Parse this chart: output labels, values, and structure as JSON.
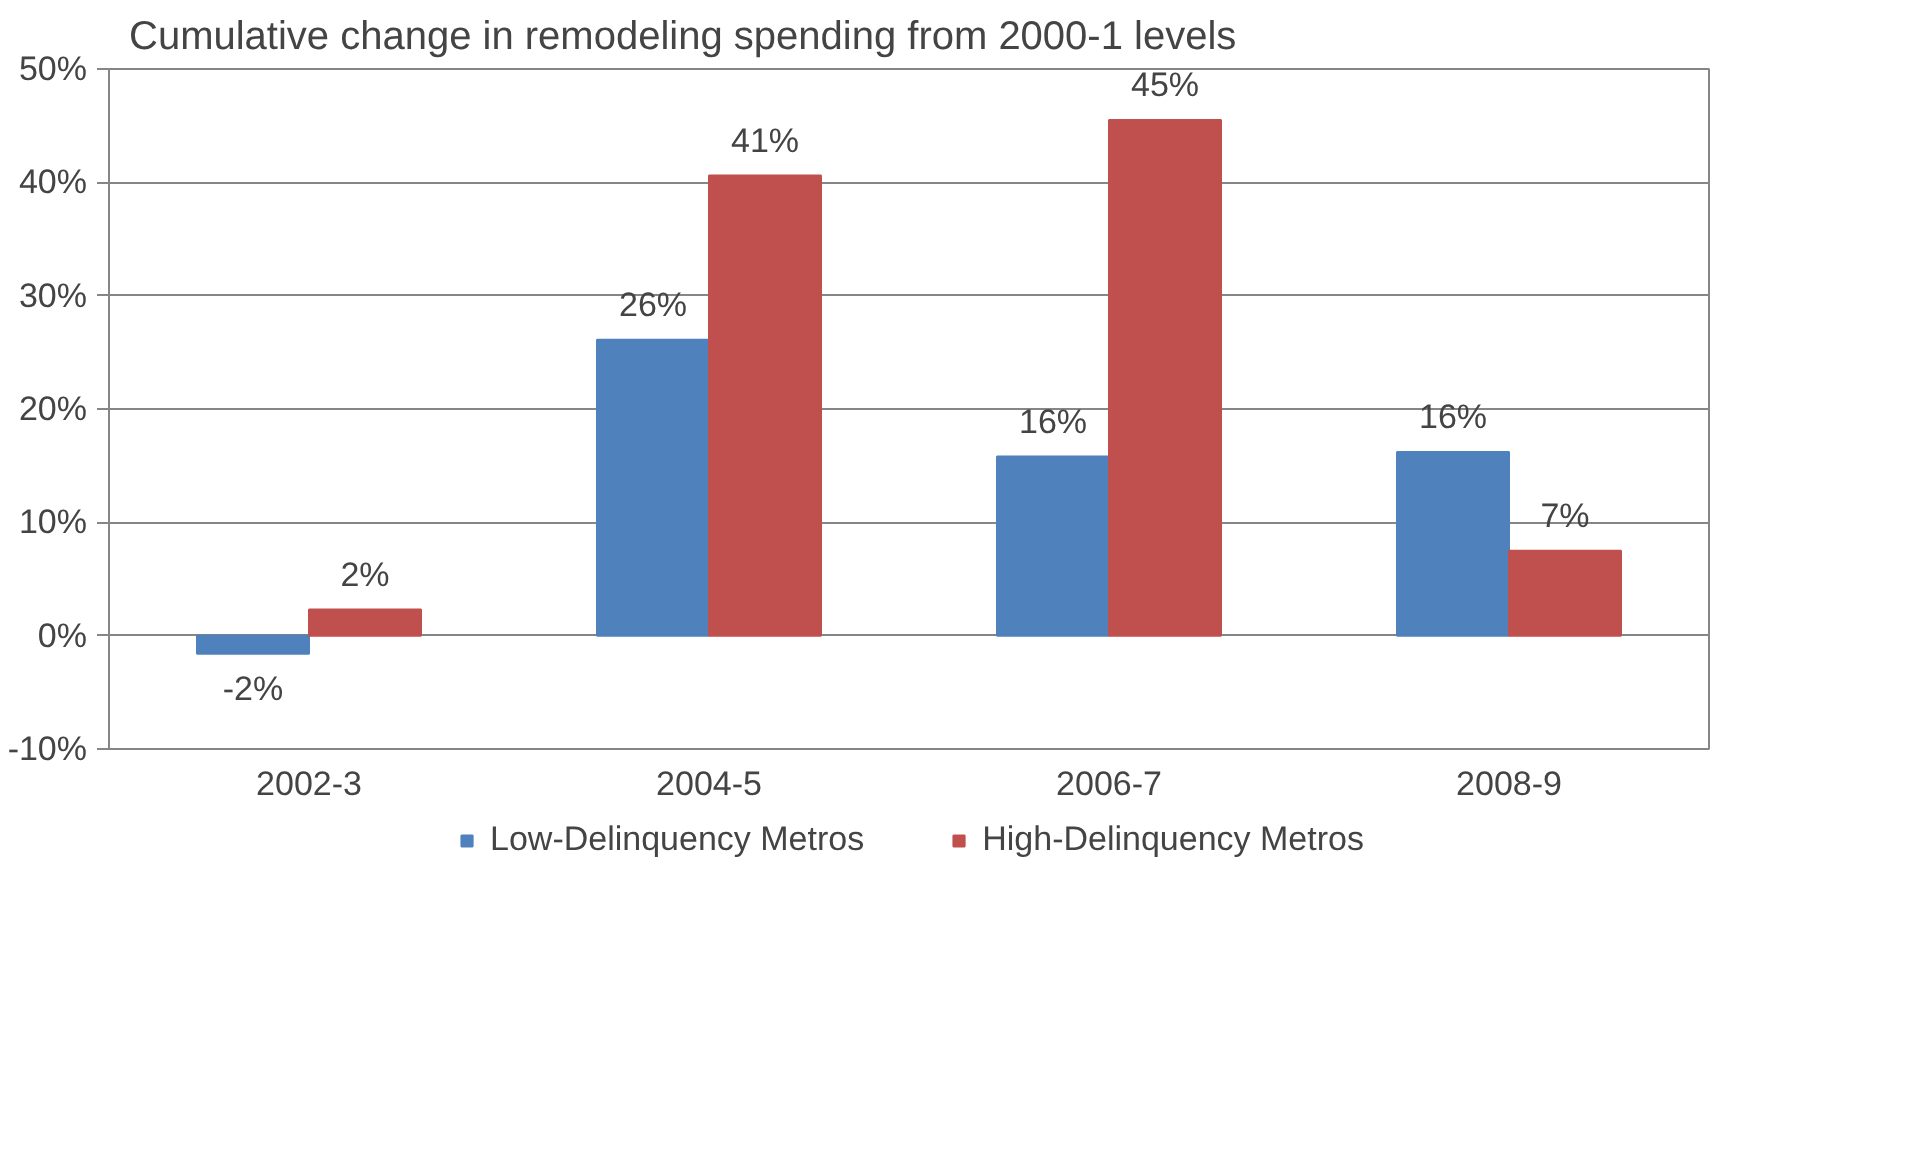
{
  "chart_data": {
    "type": "bar",
    "title": "Cumulative change in remodeling spending from 2000-1 levels",
    "categories": [
      "2002-3",
      "2004-5",
      "2006-7",
      "2008-9"
    ],
    "series": [
      {
        "name": "Low-Delinquency Metros",
        "color": "#4f81bd",
        "values": [
          -1.6,
          26.1,
          15.8,
          16.2
        ],
        "value_labels": [
          "-2%",
          "26%",
          "16%",
          "16%"
        ]
      },
      {
        "name": "High-Delinquency Metros",
        "color": "#c0504d",
        "values": [
          2.3,
          40.6,
          45.5,
          7.5
        ],
        "value_labels": [
          "2%",
          "41%",
          "45%",
          "7%"
        ]
      }
    ],
    "ylim": [
      -10,
      50
    ],
    "yticks": [
      {
        "value": -10,
        "label": "-10%"
      },
      {
        "value": 0,
        "label": "0%"
      },
      {
        "value": 10,
        "label": "10%"
      },
      {
        "value": 20,
        "label": "20%"
      },
      {
        "value": 30,
        "label": "30%"
      },
      {
        "value": 40,
        "label": "40%"
      },
      {
        "value": 50,
        "label": "50%"
      }
    ],
    "grid": "y",
    "legend": "bottom"
  }
}
